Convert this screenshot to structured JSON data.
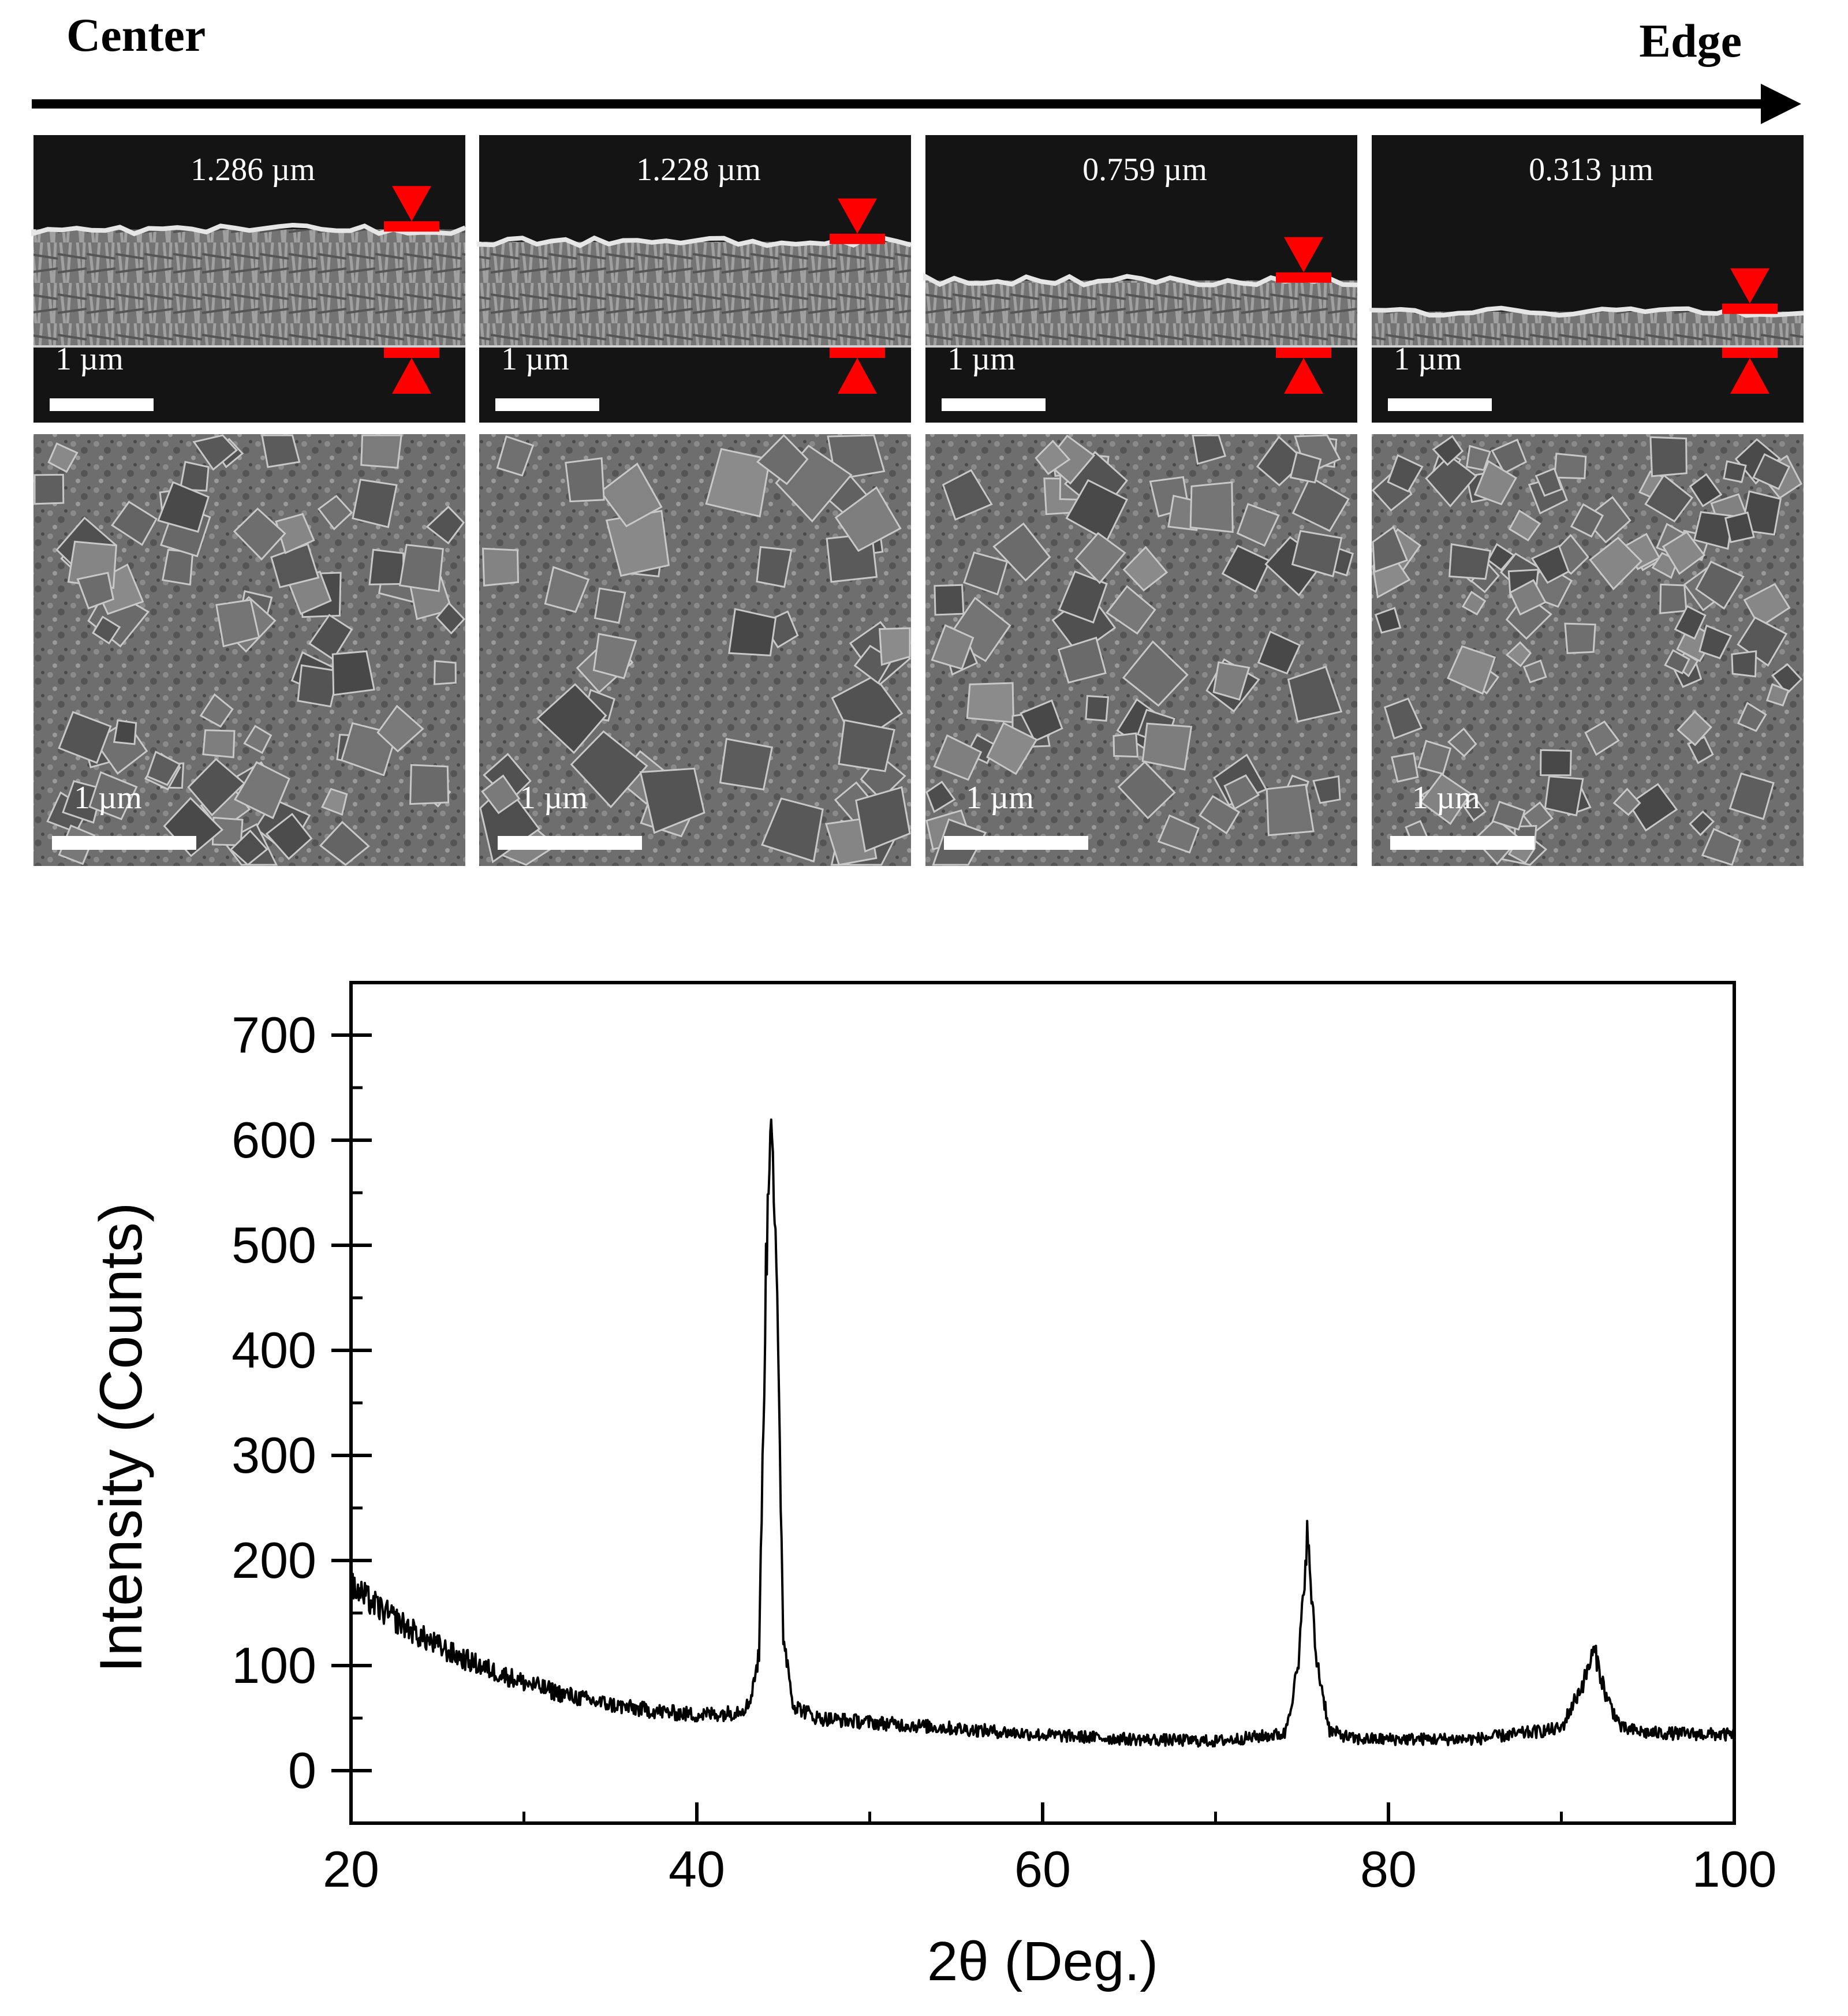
{
  "header": {
    "left_label": "Center",
    "right_label": "Edge"
  },
  "panels": {
    "cross_section_thickness": [
      "1.286 µm",
      "1.228 µm",
      "0.759 µm",
      "0.313 µm"
    ],
    "film_level_fraction": [
      0.2,
      0.3,
      0.61,
      0.86
    ],
    "cross_scale_label": "1 µm",
    "surface_scale_label": "1 µm",
    "surface_grain_level": [
      0.55,
      0.82,
      0.62,
      0.42
    ],
    "arrow_marker_color": "#ff0000"
  },
  "chart_data": {
    "type": "line",
    "xlabel": "2θ (Deg.)",
    "ylabel": "Intensity (Counts)",
    "xlim": [
      20,
      100
    ],
    "ylim": [
      -50,
      750
    ],
    "xticks": [
      20,
      40,
      60,
      80,
      100
    ],
    "yticks": [
      0,
      100,
      200,
      300,
      400,
      500,
      600,
      700
    ],
    "grid": false,
    "series": [
      {
        "color": "#000000",
        "points": [
          [
            20,
            175
          ],
          [
            22,
            150
          ],
          [
            24,
            128
          ],
          [
            26,
            110
          ],
          [
            28,
            96
          ],
          [
            30,
            84
          ],
          [
            32,
            74
          ],
          [
            34,
            66
          ],
          [
            36,
            60
          ],
          [
            38,
            56
          ],
          [
            40,
            53
          ],
          [
            42,
            55
          ],
          [
            43,
            62
          ],
          [
            43.6,
            110
          ],
          [
            44,
            470
          ],
          [
            44.3,
            655
          ],
          [
            44.6,
            470
          ],
          [
            45,
            130
          ],
          [
            45.6,
            62
          ],
          [
            47,
            50
          ],
          [
            50,
            46
          ],
          [
            55,
            40
          ],
          [
            60,
            34
          ],
          [
            65,
            30
          ],
          [
            70,
            28
          ],
          [
            74,
            35
          ],
          [
            74.8,
            100
          ],
          [
            75.3,
            225
          ],
          [
            75.8,
            110
          ],
          [
            76.6,
            38
          ],
          [
            78,
            30
          ],
          [
            85,
            30
          ],
          [
            90,
            40
          ],
          [
            91.3,
            85
          ],
          [
            91.9,
            115
          ],
          [
            92.6,
            70
          ],
          [
            93.5,
            40
          ],
          [
            95,
            36
          ],
          [
            100,
            34
          ]
        ]
      }
    ]
  }
}
